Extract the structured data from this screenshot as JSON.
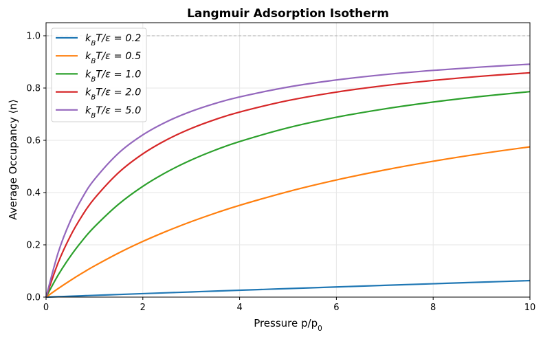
{
  "chart_data": {
    "type": "line",
    "title": "Langmuir Adsorption Isotherm",
    "xlabel": "Pressure p/p_0",
    "ylabel": "Average Occupancy ⟨n⟩",
    "xlim": [
      0,
      10
    ],
    "ylim": [
      0,
      1.05
    ],
    "xticks": [
      "0",
      "2",
      "4",
      "6",
      "8",
      "10"
    ],
    "yticks": [
      "0.0",
      "0.2",
      "0.4",
      "0.6",
      "0.8",
      "1.0"
    ],
    "grid": true,
    "legend_position": "top-left",
    "reference_line": {
      "y": 1.0,
      "style": "dashed",
      "color": "#aaaaaa"
    },
    "x": [
      0,
      0.25,
      0.5,
      0.75,
      1,
      1.5,
      2,
      2.5,
      3,
      3.5,
      4,
      5,
      6,
      7,
      8,
      9,
      10
    ],
    "series": [
      {
        "name": "k_BT/ε = 0.2",
        "color": "#1f77b4",
        "values": [
          0,
          0.00168,
          0.00336,
          0.00503,
          0.00669,
          0.01001,
          0.0133,
          0.01657,
          0.01981,
          0.02304,
          0.02624,
          0.03259,
          0.03886,
          0.04504,
          0.05115,
          0.05718,
          0.06313
        ]
      },
      {
        "name": "k_BT/ε = 0.5",
        "color": "#ff7f0e",
        "values": [
          0,
          0.03272,
          0.06338,
          0.09215,
          0.1192,
          0.16875,
          0.21301,
          0.2528,
          0.28876,
          0.32143,
          0.35121,
          0.40358,
          0.44812,
          0.48648,
          0.51985,
          0.54915,
          0.57507
        ]
      },
      {
        "name": "k_BT/ε = 1.0",
        "color": "#2ca02c",
        "values": [
          0,
          0.08422,
          0.15536,
          0.21625,
          0.26894,
          0.35558,
          0.42388,
          0.47909,
          0.52464,
          0.56285,
          0.59535,
          0.64781,
          0.68822,
          0.7203,
          0.74639,
          0.76803,
          0.78627
        ]
      },
      {
        "name": "k_BT/ε = 2.0",
        "color": "#d62728",
        "values": [
          0,
          0.13167,
          0.23269,
          0.31268,
          0.37753,
          0.47639,
          0.54812,
          0.60259,
          0.64534,
          0.67979,
          0.70813,
          0.75203,
          0.78444,
          0.80936,
          0.82911,
          0.84516,
          0.85843
        ]
      },
      {
        "name": "k_BT/ε = 5.0",
        "color": "#9467bd",
        "values": [
          0,
          0.16992,
          0.29045,
          0.38042,
          0.45016,
          0.55118,
          0.62083,
          0.67179,
          0.71065,
          0.7413,
          0.76608,
          0.80367,
          0.83086,
          0.85144,
          0.86755,
          0.8805,
          0.89115
        ]
      }
    ]
  }
}
